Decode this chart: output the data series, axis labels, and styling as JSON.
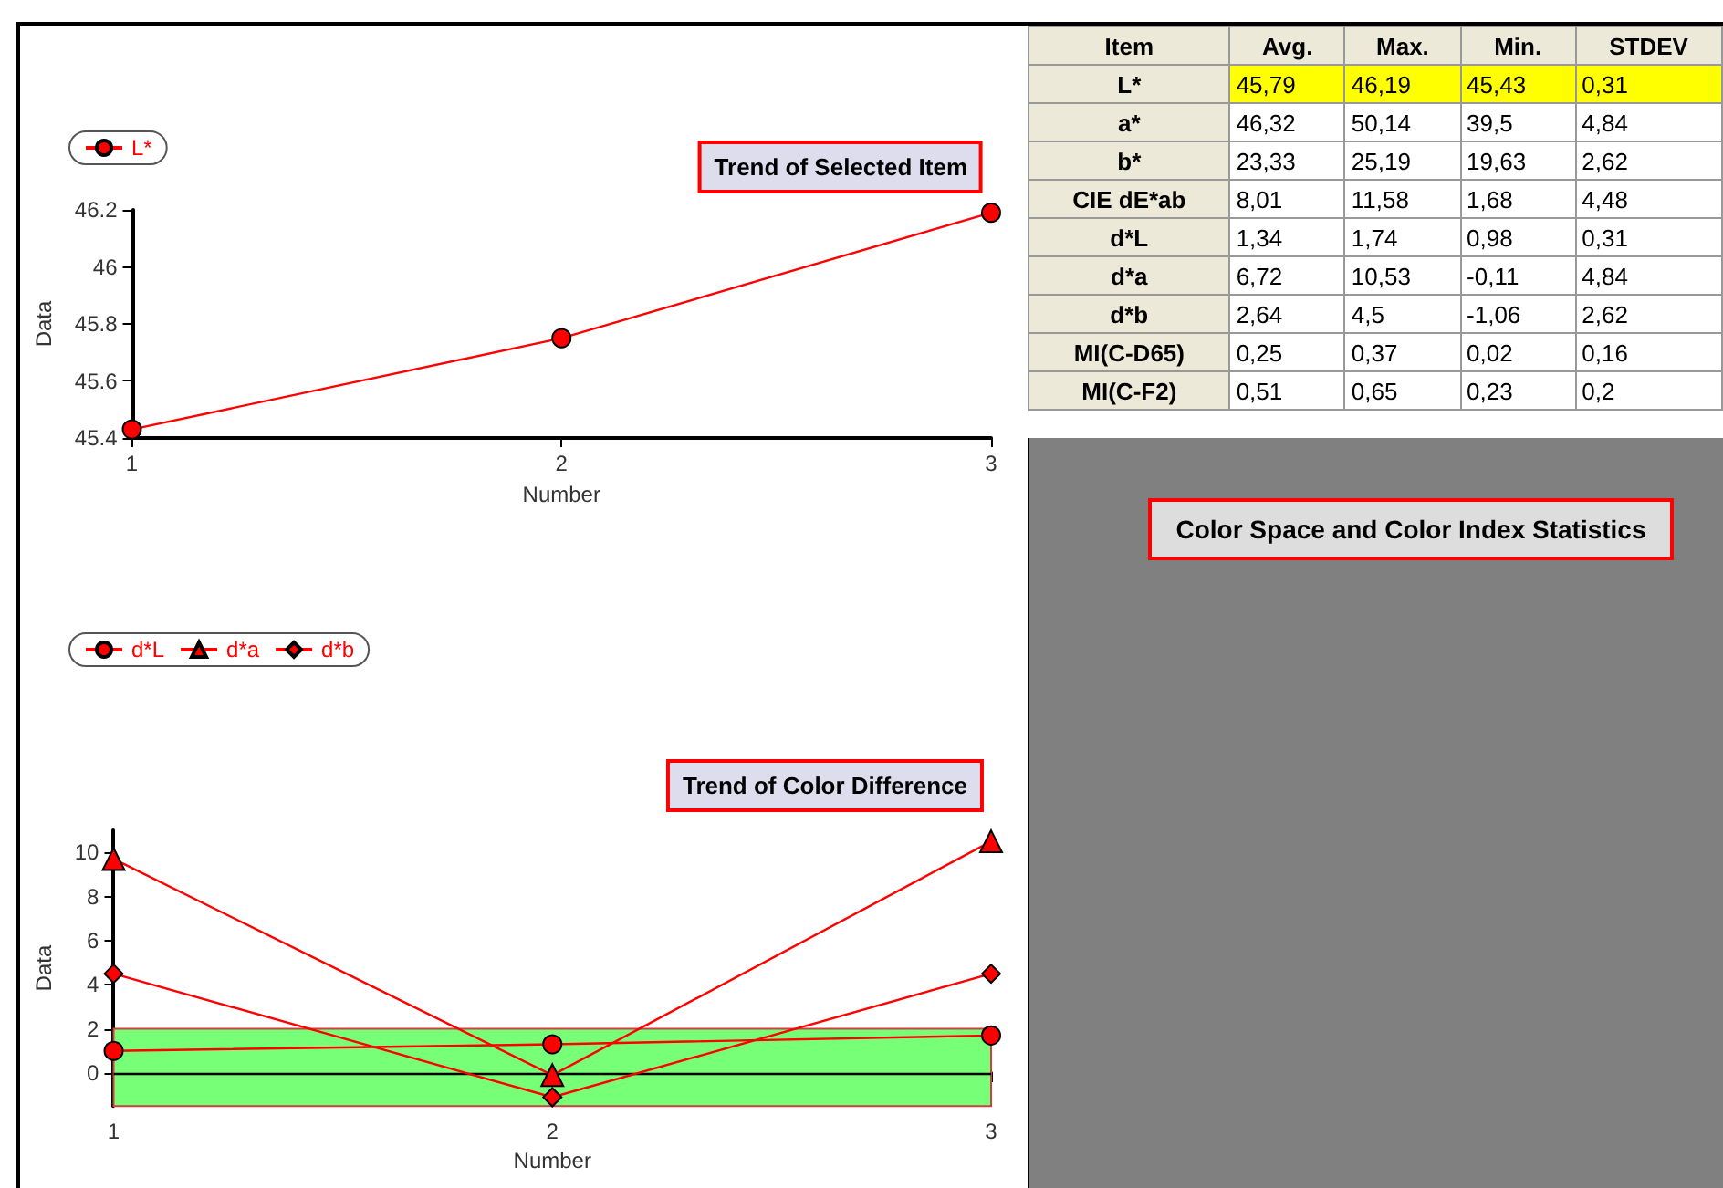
{
  "chart_data": [
    {
      "type": "line",
      "title": "Trend of Selected Item",
      "xlabel": "Number",
      "ylabel": "Data",
      "x": [
        1,
        2,
        3
      ],
      "xlim": [
        1,
        3
      ],
      "xticks": [
        1,
        2,
        3
      ],
      "ylim": [
        45.4,
        46.2
      ],
      "yticks": [
        45.4,
        45.6,
        45.8,
        46,
        46.2
      ],
      "legend": "top left",
      "marker": "circle",
      "series": [
        {
          "name": "L*",
          "color": "#ff0000",
          "values": [
            45.43,
            45.75,
            46.19
          ]
        }
      ]
    },
    {
      "type": "line",
      "title": "Trend of Color Difference",
      "xlabel": "Number",
      "ylabel": "Data",
      "x": [
        1,
        2,
        3
      ],
      "xlim": [
        1,
        3
      ],
      "xticks": [
        1,
        2,
        3
      ],
      "ylim": [
        -1.5,
        11
      ],
      "yticks": [
        0,
        2,
        4,
        6,
        8,
        10
      ],
      "legend": "top left",
      "series": [
        {
          "name": "d*L",
          "color": "#ff0000",
          "marker": "circle",
          "values": [
            1,
            1.3,
            1.7
          ]
        },
        {
          "name": "d*a",
          "color": "#ff0000",
          "marker": "triangle",
          "values": [
            9.7,
            -0.1,
            10.5
          ]
        },
        {
          "name": "d*b",
          "color": "#ff0000",
          "marker": "diamond",
          "values": [
            4.5,
            -1.1,
            4.5
          ]
        }
      ],
      "ref_lines": [
        {
          "axis": "y",
          "value": 0,
          "color": "#000000"
        }
      ],
      "bands": [
        {
          "axis": "y",
          "from": -1.5,
          "to": 2,
          "color": "#77ff77"
        }
      ]
    },
    {
      "type": "other",
      "title": "Color Space and Color Index Statistics",
      "categories": [
        "Item",
        "Avg.",
        "Max.",
        "Min.",
        "STDEV"
      ],
      "annotations": [
        "L*",
        "45,79",
        "46,19",
        "45,43",
        "0,31",
        "a*",
        "46,32",
        "50,14",
        "39,5",
        "4,84",
        "b*",
        "23,33",
        "25,19",
        "19,63",
        "2,62",
        "CIE dE*ab",
        "8,01",
        "11,58",
        "1,68",
        "4,48",
        "d*L",
        "1,34",
        "1,74",
        "0,98",
        "0,31",
        "d*a",
        "6,72",
        "10,53",
        "-0,11",
        "4,84",
        "d*b",
        "2,64",
        "4,5",
        "-1,06",
        "2,62",
        "MI(C-D65)",
        "0,25",
        "0,37",
        "0,02",
        "0,16",
        "MI(C-F2)",
        "0,51",
        "0,65",
        "0,23",
        "0,2"
      ]
    }
  ]
}
